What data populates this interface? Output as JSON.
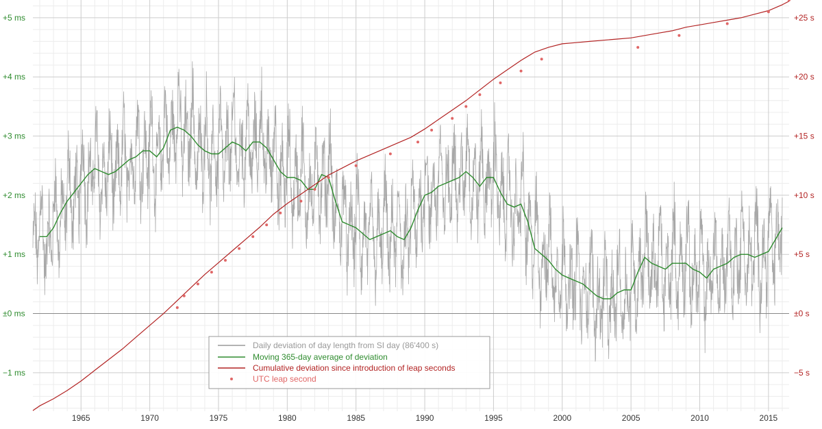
{
  "chart_data": {
    "type": "line",
    "title": "",
    "x_range": [
      1961.5,
      2016.5
    ],
    "x_ticks": [
      "1965",
      "1970",
      "1975",
      "1980",
      "1985",
      "1990",
      "1995",
      "2000",
      "2005",
      "2010",
      "2015"
    ],
    "y_left": {
      "unit": "ms",
      "range": [
        -1.65,
        5.3
      ],
      "tick_values": [
        -1,
        0,
        1,
        2,
        3,
        4,
        5
      ],
      "tick_labels": [
        "−1 ms",
        "±0 ms",
        "+1 ms",
        "+2 ms",
        "+3 ms",
        "+4 ms",
        "+5 ms"
      ]
    },
    "y_right": {
      "unit": "s",
      "range": [
        -8.25,
        26.5
      ],
      "tick_values": [
        -5,
        0,
        5,
        10,
        15,
        20,
        25
      ],
      "tick_labels": [
        "−5 s",
        "±0 s",
        "+5 s",
        "+10 s",
        "+15 s",
        "+20 s",
        "+25 s"
      ]
    },
    "grid": true,
    "legend_position": "bottom-center",
    "legend": [
      {
        "label": "Daily deviation of day length from SI day (86'400 s)",
        "color": "#999999",
        "kind": "line"
      },
      {
        "label": "Moving 365-day average of deviation",
        "color": "#2e8b2e",
        "kind": "line"
      },
      {
        "label": "Cumulative deviation since introduction of leap seconds",
        "color": "#b22222",
        "kind": "line"
      },
      {
        "label": "UTC leap second",
        "color": "#e06666",
        "kind": "marker"
      }
    ],
    "series": [
      {
        "name": "Moving 365-day average of deviation",
        "axis": "left",
        "color": "#2e8b2e",
        "x": [
          1962.0,
          1962.5,
          1963.0,
          1963.5,
          1964.0,
          1964.5,
          1965.0,
          1965.5,
          1966.0,
          1966.5,
          1967.0,
          1967.5,
          1968.0,
          1968.5,
          1969.0,
          1969.5,
          1970.0,
          1970.5,
          1971.0,
          1971.5,
          1972.0,
          1972.5,
          1973.0,
          1973.5,
          1974.0,
          1974.5,
          1975.0,
          1975.5,
          1976.0,
          1976.5,
          1977.0,
          1977.5,
          1978.0,
          1978.5,
          1979.0,
          1979.5,
          1980.0,
          1980.5,
          1981.0,
          1981.5,
          1982.0,
          1982.5,
          1983.0,
          1983.5,
          1984.0,
          1984.5,
          1985.0,
          1985.5,
          1986.0,
          1986.5,
          1987.0,
          1987.5,
          1988.0,
          1988.5,
          1989.0,
          1989.5,
          1990.0,
          1990.5,
          1991.0,
          1991.5,
          1992.0,
          1992.5,
          1993.0,
          1993.5,
          1994.0,
          1994.5,
          1995.0,
          1995.5,
          1996.0,
          1996.5,
          1997.0,
          1997.5,
          1998.0,
          1998.5,
          1999.0,
          1999.5,
          2000.0,
          2000.5,
          2001.0,
          2001.5,
          2002.0,
          2002.5,
          2003.0,
          2003.5,
          2004.0,
          2004.5,
          2005.0,
          2005.5,
          2006.0,
          2006.5,
          2007.0,
          2007.5,
          2008.0,
          2008.5,
          2009.0,
          2009.5,
          2010.0,
          2010.5,
          2011.0,
          2011.5,
          2012.0,
          2012.5,
          2013.0,
          2013.5,
          2014.0,
          2014.5,
          2015.0,
          2015.5,
          2016.0
        ],
        "y": [
          1.3,
          1.3,
          1.45,
          1.7,
          1.9,
          2.05,
          2.2,
          2.35,
          2.45,
          2.4,
          2.35,
          2.4,
          2.5,
          2.6,
          2.65,
          2.75,
          2.75,
          2.65,
          2.8,
          3.1,
          3.15,
          3.1,
          3.0,
          2.85,
          2.75,
          2.7,
          2.7,
          2.8,
          2.9,
          2.85,
          2.75,
          2.9,
          2.9,
          2.8,
          2.6,
          2.4,
          2.3,
          2.3,
          2.25,
          2.1,
          2.1,
          2.35,
          2.3,
          1.9,
          1.55,
          1.5,
          1.45,
          1.35,
          1.25,
          1.3,
          1.35,
          1.4,
          1.3,
          1.25,
          1.45,
          1.75,
          2.0,
          2.05,
          2.15,
          2.2,
          2.25,
          2.3,
          2.4,
          2.3,
          2.15,
          2.3,
          2.3,
          2.05,
          1.85,
          1.8,
          1.85,
          1.55,
          1.1,
          1.0,
          0.9,
          0.75,
          0.65,
          0.6,
          0.55,
          0.5,
          0.4,
          0.3,
          0.25,
          0.25,
          0.35,
          0.4,
          0.4,
          0.7,
          0.95,
          0.85,
          0.8,
          0.75,
          0.85,
          0.85,
          0.85,
          0.75,
          0.7,
          0.6,
          0.75,
          0.8,
          0.85,
          0.95,
          1.0,
          1.0,
          0.95,
          1.0,
          1.05,
          1.25,
          1.45
        ]
      },
      {
        "name": "Cumulative deviation since introduction of leap seconds",
        "axis": "right",
        "color": "#b22222",
        "x": [
          1961.5,
          1962.0,
          1963.0,
          1964.0,
          1965.0,
          1966.0,
          1967.0,
          1968.0,
          1969.0,
          1970.0,
          1971.0,
          1972.0,
          1973.0,
          1974.0,
          1975.0,
          1976.0,
          1977.0,
          1978.0,
          1979.0,
          1980.0,
          1981.0,
          1982.0,
          1983.0,
          1984.0,
          1985.0,
          1986.0,
          1987.0,
          1988.0,
          1989.0,
          1990.0,
          1991.0,
          1992.0,
          1993.0,
          1994.0,
          1995.0,
          1996.0,
          1997.0,
          1998.0,
          1999.0,
          2000.0,
          2001.0,
          2002.0,
          2003.0,
          2004.0,
          2005.0,
          2006.0,
          2007.0,
          2008.0,
          2009.0,
          2010.0,
          2011.0,
          2012.0,
          2013.0,
          2014.0,
          2015.0,
          2016.0,
          2016.5
        ],
        "y": [
          -8.2,
          -7.8,
          -7.2,
          -6.5,
          -5.7,
          -4.8,
          -3.9,
          -3.0,
          -2.0,
          -1.0,
          0.0,
          1.1,
          2.2,
          3.3,
          4.3,
          5.3,
          6.3,
          7.3,
          8.4,
          9.3,
          10.1,
          10.9,
          11.7,
          12.3,
          12.9,
          13.4,
          13.9,
          14.4,
          14.9,
          15.6,
          16.4,
          17.2,
          18.0,
          18.9,
          19.8,
          20.6,
          21.4,
          22.1,
          22.5,
          22.8,
          22.9,
          23.0,
          23.1,
          23.2,
          23.3,
          23.5,
          23.7,
          23.9,
          24.2,
          24.4,
          24.6,
          24.8,
          25.0,
          25.3,
          25.6,
          26.1,
          26.4
        ]
      }
    ],
    "leap_seconds": {
      "name": "UTC leap second",
      "axis": "right",
      "color": "#e06666",
      "x": [
        1972.0,
        1972.5,
        1973.5,
        1974.5,
        1975.5,
        1976.5,
        1977.5,
        1978.5,
        1979.5,
        1981.0,
        1982.0,
        1983.0,
        1985.0,
        1987.5,
        1989.5,
        1990.5,
        1992.0,
        1993.0,
        1994.0,
        1995.5,
        1997.0,
        1998.5,
        2005.5,
        2008.5,
        2012.0,
        2015.0,
        2016.5
      ],
      "y": [
        0.5,
        1.5,
        2.5,
        3.5,
        4.5,
        5.5,
        6.5,
        7.5,
        8.5,
        9.5,
        10.5,
        11.5,
        12.5,
        13.5,
        14.5,
        15.5,
        16.5,
        17.5,
        18.5,
        19.5,
        20.5,
        21.5,
        22.5,
        23.5,
        24.5,
        25.5,
        26.5
      ]
    },
    "daily_deviation": {
      "name": "Daily deviation of day length from SI day (86'400 s)",
      "axis": "left",
      "color": "#999999"
    }
  }
}
